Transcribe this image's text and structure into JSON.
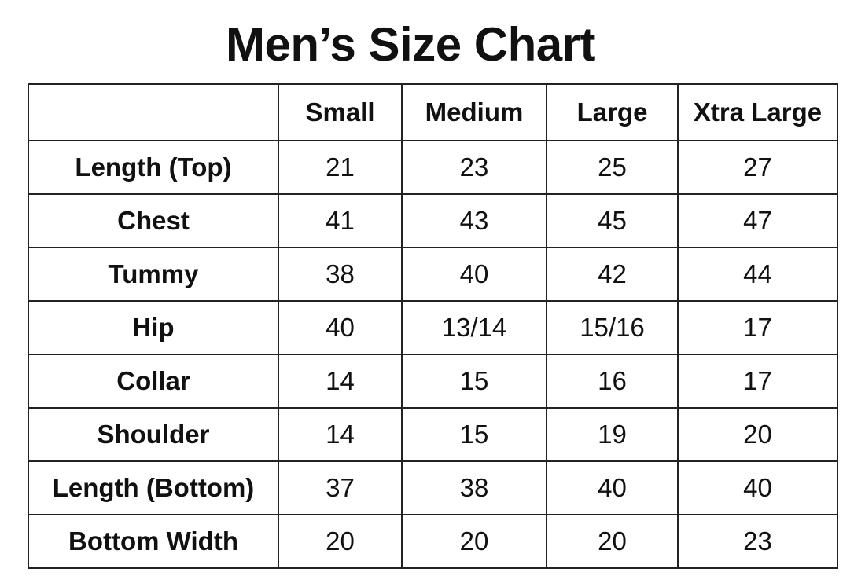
{
  "title": "Men’s Size Chart",
  "columns": [
    "",
    "Small",
    "Medium",
    "Large",
    "Xtra Large"
  ],
  "rows": [
    {
      "label": "Length (Top)",
      "values": [
        "21",
        "23",
        "25",
        "27"
      ]
    },
    {
      "label": "Chest",
      "values": [
        "41",
        "43",
        "45",
        "47"
      ]
    },
    {
      "label": "Tummy",
      "values": [
        "38",
        "40",
        "42",
        "44"
      ]
    },
    {
      "label": "Hip",
      "values": [
        "40",
        "13/14",
        "15/16",
        "17"
      ]
    },
    {
      "label": "Collar",
      "values": [
        "14",
        "15",
        "16",
        "17"
      ]
    },
    {
      "label": "Shoulder",
      "values": [
        "14",
        "15",
        "19",
        "20"
      ]
    },
    {
      "label": "Length (Bottom)",
      "values": [
        "37",
        "38",
        "40",
        "40"
      ]
    },
    {
      "label": "Bottom Width",
      "values": [
        "20",
        "20",
        "20",
        "23"
      ]
    }
  ]
}
